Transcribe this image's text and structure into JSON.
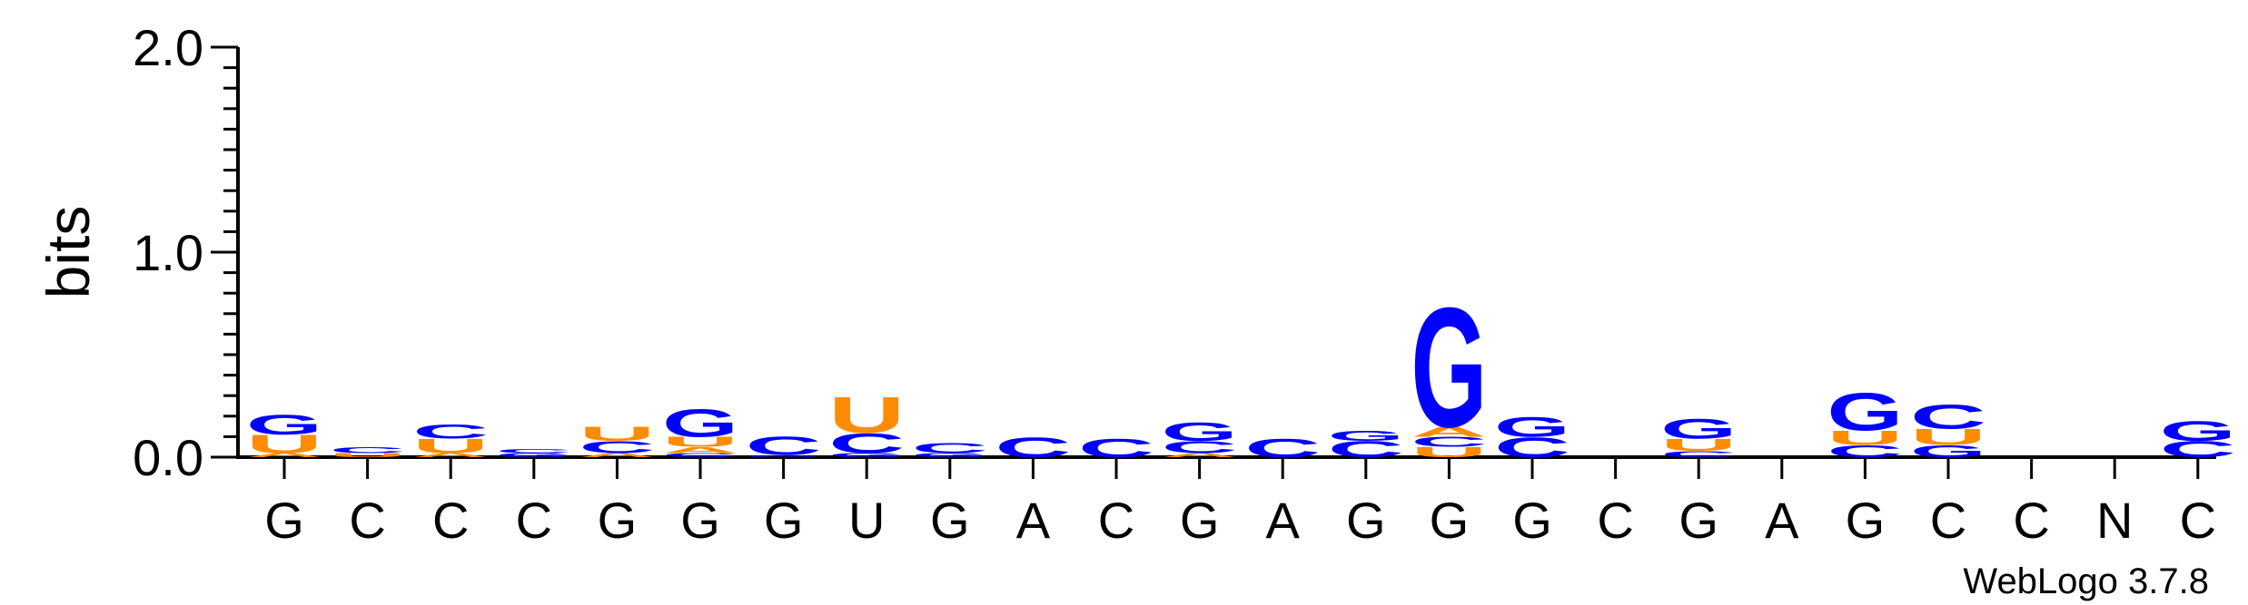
{
  "chart_data": {
    "type": "sequence-logo",
    "ylabel": "bits",
    "ylim": [
      0,
      2.0
    ],
    "yticks": [
      "0.0",
      "1.0",
      "2.0"
    ],
    "credit": "WebLogo 3.7.8",
    "colors": {
      "G": "#0000ff",
      "C": "#0000ff",
      "U": "#ff8c00",
      "A": "#ff8c00"
    },
    "positions": [
      {
        "label": "G",
        "stack": [
          [
            "A",
            0.02
          ],
          [
            "U",
            0.09
          ],
          [
            "G",
            0.1
          ]
        ]
      },
      {
        "label": "C",
        "stack": [
          [
            "U",
            0.02
          ],
          [
            "C",
            0.03
          ]
        ]
      },
      {
        "label": "C",
        "stack": [
          [
            "A",
            0.02
          ],
          [
            "U",
            0.07
          ],
          [
            "C",
            0.07
          ]
        ]
      },
      {
        "label": "C",
        "stack": [
          [
            "G",
            0.02
          ],
          [
            "C",
            0.02
          ]
        ]
      },
      {
        "label": "G",
        "stack": [
          [
            "A",
            0.02
          ],
          [
            "C",
            0.06
          ],
          [
            "U",
            0.07
          ]
        ]
      },
      {
        "label": "G",
        "stack": [
          [
            "C",
            0.02
          ],
          [
            "A",
            0.03
          ],
          [
            "U",
            0.05
          ],
          [
            "G",
            0.14
          ]
        ]
      },
      {
        "label": "G",
        "stack": [
          [
            "G",
            0.01
          ],
          [
            "C",
            0.09
          ]
        ]
      },
      {
        "label": "U",
        "stack": [
          [
            "G",
            0.02
          ],
          [
            "C",
            0.1
          ],
          [
            "U",
            0.18
          ]
        ]
      },
      {
        "label": "G",
        "stack": [
          [
            "G",
            0.02
          ],
          [
            "C",
            0.05
          ]
        ]
      },
      {
        "label": "A",
        "stack": [
          [
            "C",
            0.1
          ]
        ]
      },
      {
        "label": "C",
        "stack": [
          [
            "C",
            0.09
          ]
        ]
      },
      {
        "label": "G",
        "stack": [
          [
            "A",
            0.02
          ],
          [
            "C",
            0.06
          ],
          [
            "G",
            0.09
          ]
        ]
      },
      {
        "label": "A",
        "stack": [
          [
            "C",
            0.09
          ]
        ]
      },
      {
        "label": "G",
        "stack": [
          [
            "C",
            0.08
          ],
          [
            "G",
            0.05
          ]
        ]
      },
      {
        "label": "G",
        "stack": [
          [
            "U",
            0.05
          ],
          [
            "C",
            0.05
          ],
          [
            "A",
            0.05
          ],
          [
            "G",
            0.6
          ]
        ]
      },
      {
        "label": "G",
        "stack": [
          [
            "C",
            0.1
          ],
          [
            "G",
            0.1
          ]
        ]
      },
      {
        "label": "C",
        "stack": []
      },
      {
        "label": "G",
        "stack": [
          [
            "C",
            0.03
          ],
          [
            "U",
            0.06
          ],
          [
            "G",
            0.1
          ]
        ]
      },
      {
        "label": "A",
        "stack": []
      },
      {
        "label": "G",
        "stack": [
          [
            "C",
            0.06
          ],
          [
            "U",
            0.07
          ],
          [
            "G",
            0.19
          ]
        ]
      },
      {
        "label": "C",
        "stack": [
          [
            "G",
            0.06
          ],
          [
            "U",
            0.08
          ],
          [
            "C",
            0.12
          ]
        ]
      },
      {
        "label": "C",
        "stack": []
      },
      {
        "label": "N",
        "stack": []
      },
      {
        "label": "C",
        "stack": [
          [
            "C",
            0.08
          ],
          [
            "G",
            0.1
          ]
        ]
      }
    ]
  }
}
